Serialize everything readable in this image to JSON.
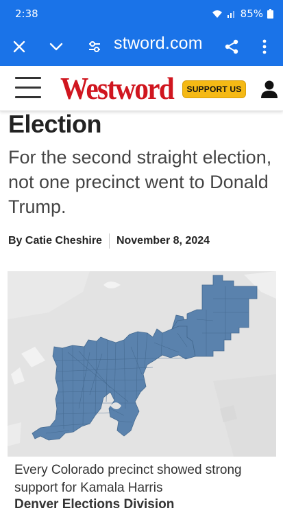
{
  "status_bar": {
    "time": "2:38",
    "battery": "85%"
  },
  "browser": {
    "url": "stword.com",
    "icons": [
      "close-icon",
      "chevron-down-icon",
      "site-settings-icon",
      "share-icon",
      "more-vert-icon"
    ]
  },
  "site": {
    "logo": "Westword",
    "support_label": "SUPPORT US",
    "brand_color": "#d0161f",
    "support_color": "#f5b915"
  },
  "article": {
    "headline_fragment": "Election",
    "subhead": "For the second straight election, not one precinct went to Donald Trump.",
    "author": "By Catie Cheshire",
    "date": "November 8, 2024",
    "caption": "Every Colorado precinct showed strong support for Kamala Harris",
    "credit": "Denver Elections Division",
    "map_fill_color": "#5a82ad"
  }
}
